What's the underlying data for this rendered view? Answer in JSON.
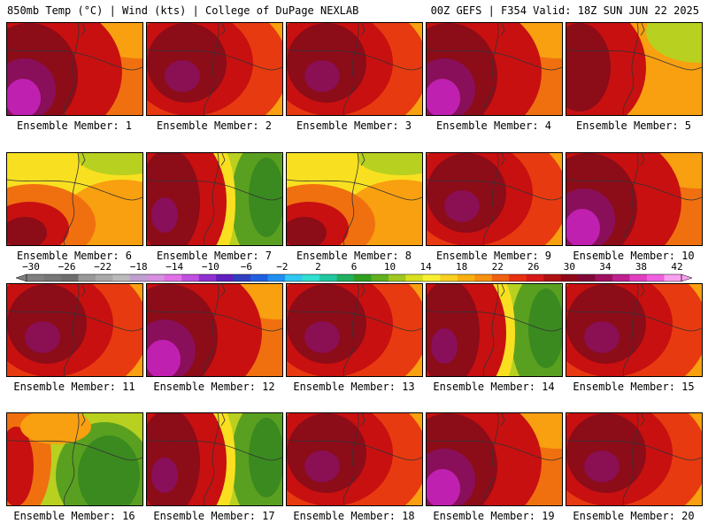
{
  "header": {
    "left": "850mb Temp (°C) | Wind (kts) | College of DuPage NEXLAB",
    "right": "00Z GEFS | F354 Valid: 18Z SUN JUN 22 2025"
  },
  "caption_prefix": "Ensemble Member: ",
  "members": [
    {
      "label": "Ensemble Member: 1",
      "pattern": "hot-west"
    },
    {
      "label": "Ensemble Member: 2",
      "pattern": "hot-center"
    },
    {
      "label": "Ensemble Member: 3",
      "pattern": "hot-center"
    },
    {
      "label": "Ensemble Member: 4",
      "pattern": "hot-west"
    },
    {
      "label": "Ensemble Member: 5",
      "pattern": "warm-west"
    },
    {
      "label": "Ensemble Member: 6",
      "pattern": "warm-sw"
    },
    {
      "label": "Ensemble Member: 7",
      "pattern": "hot-west-cool-east"
    },
    {
      "label": "Ensemble Member: 8",
      "pattern": "warm-sw"
    },
    {
      "label": "Ensemble Member: 9",
      "pattern": "hot-center"
    },
    {
      "label": "Ensemble Member: 10",
      "pattern": "hot-west"
    },
    {
      "label": "Ensemble Member: 11",
      "pattern": "hot-center"
    },
    {
      "label": "Ensemble Member: 12",
      "pattern": "hot-west"
    },
    {
      "label": "Ensemble Member: 13",
      "pattern": "hot-center"
    },
    {
      "label": "Ensemble Member: 14",
      "pattern": "hot-west-cool-east"
    },
    {
      "label": "Ensemble Member: 15",
      "pattern": "hot-center"
    },
    {
      "label": "Ensemble Member: 16",
      "pattern": "cool-east"
    },
    {
      "label": "Ensemble Member: 17",
      "pattern": "hot-west-cool-east"
    },
    {
      "label": "Ensemble Member: 18",
      "pattern": "hot-center"
    },
    {
      "label": "Ensemble Member: 19",
      "pattern": "hot-west"
    },
    {
      "label": "Ensemble Member: 20",
      "pattern": "hot-center"
    }
  ],
  "colorbar": {
    "labels": [
      "−30",
      "−26",
      "−22",
      "−18",
      "−14",
      "−10",
      "−6",
      "−2",
      "2",
      "6",
      "10",
      "14",
      "18",
      "22",
      "26",
      "30",
      "34",
      "38",
      "42"
    ],
    "colors": [
      "#808080",
      "#777777",
      "#6e6e6e",
      "#999999",
      "#aaaaaa",
      "#bbbbbb",
      "#c0a0d0",
      "#d890e0",
      "#e070e8",
      "#c050e0",
      "#9030d0",
      "#6020c0",
      "#3040c0",
      "#2060e0",
      "#2090f0",
      "#30c8f0",
      "#30e0d0",
      "#20c8a0",
      "#20b060",
      "#30a020",
      "#60b020",
      "#a0c820",
      "#d8e020",
      "#f8f030",
      "#f8d020",
      "#f8b010",
      "#f89010",
      "#f06010",
      "#e83010",
      "#d81818",
      "#b01010",
      "#900818",
      "#800838",
      "#a01060",
      "#c02090",
      "#e040c0",
      "#f060e0",
      "#f8a0f0"
    ]
  },
  "palette": {
    "magenta": "#c020b0",
    "purple": "#8a0f5a",
    "darkred": "#8c0c18",
    "red": "#c81010",
    "redorange": "#e83a10",
    "orange": "#f07010",
    "amber": "#f8a010",
    "yellow": "#f8e020",
    "lime": "#b8d020",
    "green": "#5aa020",
    "darkgreen": "#3a8a20"
  }
}
